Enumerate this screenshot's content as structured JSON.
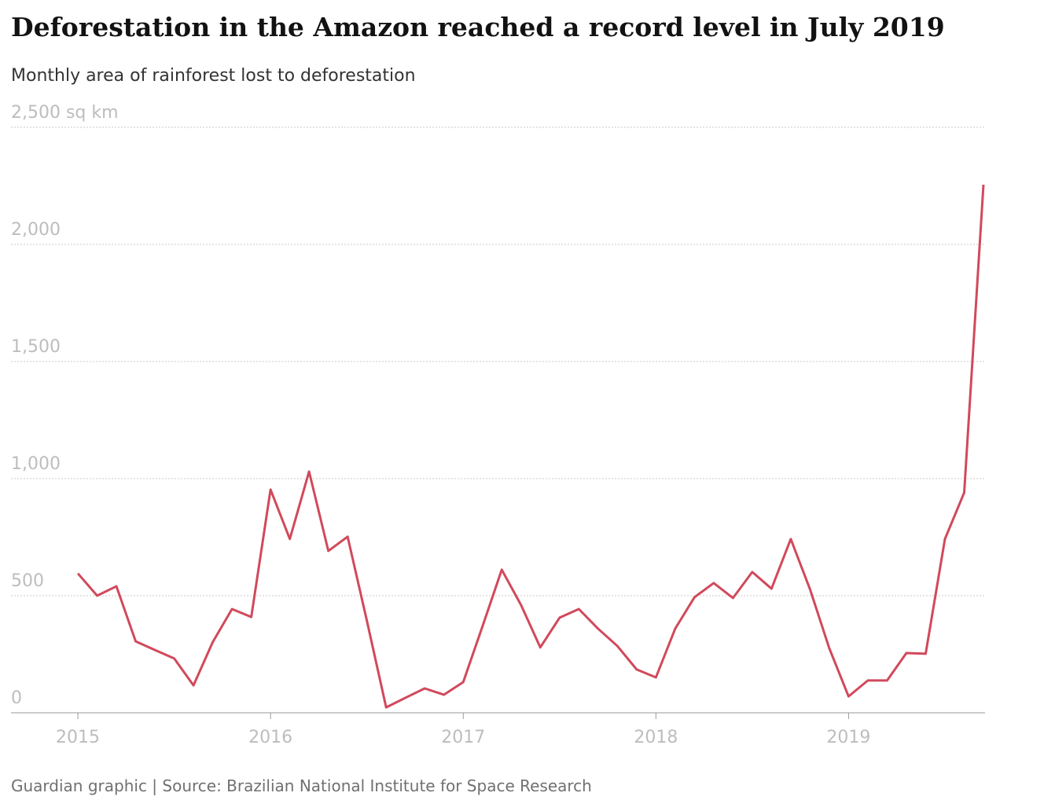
{
  "chart_data": {
    "type": "line",
    "title": "Deforestation in the Amazon reached a record level in July 2019",
    "subtitle": "Monthly area of rainforest lost to deforestation",
    "source": "Guardian graphic | Source: Brazilian National Institute for Space Research",
    "x": [
      2015.0,
      2015.1,
      2015.2,
      2015.3,
      2015.4,
      2015.5,
      2015.6,
      2015.7,
      2015.8,
      2015.9,
      2016.0,
      2016.1,
      2016.2,
      2016.3,
      2016.4,
      2016.5,
      2016.6,
      2016.7,
      2016.8,
      2016.9,
      2017.0,
      2017.1,
      2017.2,
      2017.3,
      2017.4,
      2017.5,
      2017.6,
      2017.7,
      2017.8,
      2017.9,
      2018.0,
      2018.1,
      2018.2,
      2018.3,
      2018.4,
      2018.5,
      2018.6,
      2018.7,
      2018.8,
      2018.9,
      2019.0,
      2019.1,
      2019.2,
      2019.3,
      2019.4,
      2019.5,
      2019.6,
      2019.7
    ],
    "series": [
      {
        "name": "Deforestation",
        "color": "#d1495b",
        "values": [
          595,
          500,
          540,
          305,
          268,
          232,
          117,
          302,
          443,
          409,
          953,
          742,
          1030,
          691,
          752,
          393,
          23,
          64,
          104,
          77,
          131,
          369,
          611,
          460,
          279,
          406,
          443,
          359,
          285,
          185,
          151,
          359,
          493,
          554,
          490,
          601,
          530,
          742,
          527,
          275,
          70,
          138,
          138,
          255,
          252,
          742,
          940,
          2255
        ]
      }
    ],
    "xlim": [
      2014.653,
      2019.7
    ],
    "xticks": [
      2015,
      2016,
      2017,
      2018,
      2019
    ],
    "ylim": [
      0,
      2500
    ],
    "yticks": [
      0,
      500,
      {
        "value": 1000,
        "label": "1,000"
      },
      {
        "value": 1500,
        "label": "1,500"
      },
      {
        "value": 2000,
        "label": "2,000"
      },
      {
        "value": 2500,
        "label": "2,500 sq km"
      }
    ],
    "grid": true
  }
}
